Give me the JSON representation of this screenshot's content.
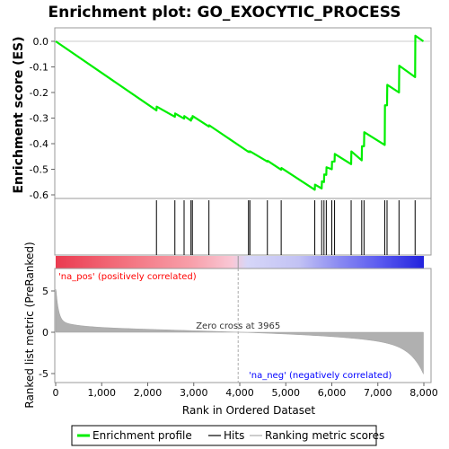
{
  "chart_data": {
    "type": "line",
    "title": "Enrichment plot: GO_EXOCYTIC_PROCESS",
    "xlabel": "Rank in Ordered Dataset",
    "ylabel_top": "Enrichment score (ES)",
    "ylabel_bottom": "Ranked list metric (PreRanked)",
    "xlim": [
      0,
      8000
    ],
    "es_ylim": [
      -0.6,
      0.0
    ],
    "metric_ylim": [
      -5,
      5
    ],
    "x_ticks": [
      {
        "v": 0,
        "label": "0"
      },
      {
        "v": 1000,
        "label": "1,000"
      },
      {
        "v": 2000,
        "label": "2,000"
      },
      {
        "v": 3000,
        "label": "3,000"
      },
      {
        "v": 4000,
        "label": "4,000"
      },
      {
        "v": 5000,
        "label": "5,000"
      },
      {
        "v": 6000,
        "label": "6,000"
      },
      {
        "v": 7000,
        "label": "7,000"
      },
      {
        "v": 8000,
        "label": "8,000"
      }
    ],
    "es_ticks": [
      {
        "v": 0.0,
        "label": "0.0"
      },
      {
        "v": -0.1,
        "label": "-0.1"
      },
      {
        "v": -0.2,
        "label": "-0.2"
      },
      {
        "v": -0.3,
        "label": "-0.3"
      },
      {
        "v": -0.4,
        "label": "-0.4"
      },
      {
        "v": -0.5,
        "label": "-0.5"
      },
      {
        "v": -0.6,
        "label": "-0.6"
      }
    ],
    "metric_ticks": [
      {
        "v": 5,
        "label": "5"
      },
      {
        "v": 0,
        "label": "0"
      },
      {
        "v": -5,
        "label": "-5"
      }
    ],
    "hits": [
      2190,
      2590,
      2790,
      2940,
      2970,
      3330,
      4190,
      4220,
      4600,
      4900,
      5630,
      5780,
      5830,
      5880,
      6000,
      6060,
      6420,
      6650,
      6700,
      7150,
      7200,
      7460,
      7810
    ],
    "es_profile": [
      [
        0,
        0.0
      ],
      [
        2190,
        -0.27
      ],
      [
        2195,
        -0.255
      ],
      [
        2590,
        -0.295
      ],
      [
        2595,
        -0.282
      ],
      [
        2790,
        -0.302
      ],
      [
        2795,
        -0.292
      ],
      [
        2940,
        -0.31
      ],
      [
        2945,
        -0.3
      ],
      [
        2970,
        -0.302
      ],
      [
        2975,
        -0.292
      ],
      [
        3330,
        -0.333
      ],
      [
        3335,
        -0.328
      ],
      [
        4190,
        -0.432
      ],
      [
        4195,
        -0.43
      ],
      [
        4220,
        -0.433
      ],
      [
        4225,
        -0.43
      ],
      [
        4600,
        -0.47
      ],
      [
        4605,
        -0.467
      ],
      [
        4900,
        -0.502
      ],
      [
        4905,
        -0.495
      ],
      [
        5630,
        -0.58
      ],
      [
        5635,
        -0.56
      ],
      [
        5780,
        -0.575
      ],
      [
        5785,
        -0.547
      ],
      [
        5830,
        -0.55
      ],
      [
        5835,
        -0.52
      ],
      [
        5880,
        -0.522
      ],
      [
        5885,
        -0.492
      ],
      [
        6000,
        -0.5
      ],
      [
        6005,
        -0.47
      ],
      [
        6060,
        -0.47
      ],
      [
        6065,
        -0.44
      ],
      [
        6420,
        -0.48
      ],
      [
        6425,
        -0.43
      ],
      [
        6650,
        -0.465
      ],
      [
        6655,
        -0.41
      ],
      [
        6700,
        -0.41
      ],
      [
        6705,
        -0.355
      ],
      [
        7150,
        -0.405
      ],
      [
        7155,
        -0.25
      ],
      [
        7200,
        -0.25
      ],
      [
        7205,
        -0.17
      ],
      [
        7460,
        -0.2
      ],
      [
        7465,
        -0.095
      ],
      [
        7810,
        -0.14
      ],
      [
        7815,
        0.022
      ],
      [
        7990,
        0.0
      ]
    ],
    "zero_cross": 3965,
    "annotations": {
      "zero_cross": "Zero cross at 3965",
      "pos": "'na_pos' (positively correlated)",
      "neg": "'na_neg' (negatively correlated)"
    },
    "colors": {
      "profile": "#00ee00",
      "pos_text": "#ff0000",
      "neg_text": "#0000ff",
      "metric_fill": "#b0b0b0",
      "hit_line": "#000000"
    },
    "legend": [
      {
        "label": "Enrichment profile",
        "marker": "green-line"
      },
      {
        "label": "Hits",
        "marker": "black-line"
      },
      {
        "label": "Ranking metric scores",
        "marker": "gray-line"
      }
    ]
  }
}
